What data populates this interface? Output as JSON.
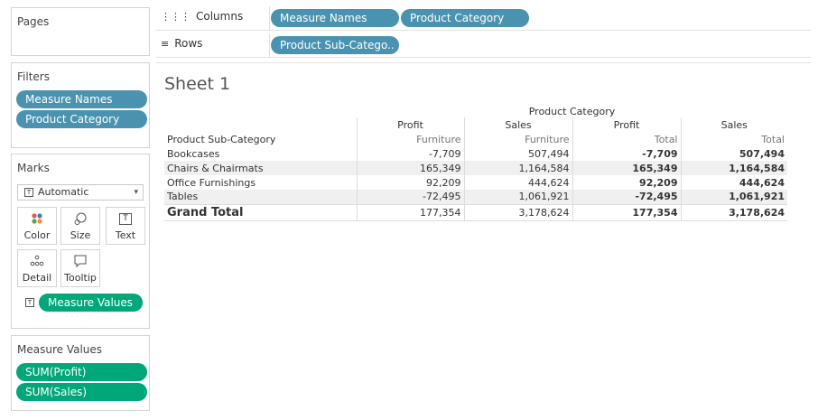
{
  "pages": {
    "title": "Pages"
  },
  "filters": {
    "title": "Filters",
    "items": [
      "Measure Names",
      "Product Category"
    ]
  },
  "marks": {
    "title": "Marks",
    "type": "Automatic",
    "buttons": {
      "color": "Color",
      "size": "Size",
      "text": "Text",
      "detail": "Detail",
      "tooltip": "Tooltip"
    },
    "text_field": "Measure Values"
  },
  "measure_values": {
    "title": "Measure Values",
    "items": [
      "SUM(Profit)",
      "SUM(Sales)"
    ]
  },
  "columns_shelf": {
    "label": "Columns",
    "pills": [
      "Measure Names",
      "Product Category"
    ]
  },
  "rows_shelf": {
    "label": "Rows",
    "pills": [
      "Product Sub-Catego.."
    ]
  },
  "sheet": {
    "title": "Sheet 1",
    "column_group_header": "Product Category",
    "row_header": "Product Sub-Category",
    "measures": [
      "Profit",
      "Sales",
      "Profit",
      "Sales"
    ],
    "categories": [
      "Furniture",
      "Furniture",
      "Total",
      "Total"
    ],
    "rows": [
      {
        "label": "Bookcases",
        "values": [
          "-7,709",
          "507,494",
          "-7,709",
          "507,494"
        ]
      },
      {
        "label": "Chairs & Chairmats",
        "values": [
          "165,349",
          "1,164,584",
          "165,349",
          "1,164,584"
        ]
      },
      {
        "label": "Office Furnishings",
        "values": [
          "92,209",
          "444,624",
          "92,209",
          "444,624"
        ]
      },
      {
        "label": "Tables",
        "values": [
          "-72,495",
          "1,061,921",
          "-72,495",
          "1,061,921"
        ]
      }
    ],
    "grand_total": {
      "label": "Grand Total",
      "values": [
        "177,354",
        "3,178,624",
        "177,354",
        "3,178,624"
      ]
    }
  },
  "colors": {
    "dimension_pill": "#4a93b0",
    "measure_pill": "#00a879"
  }
}
